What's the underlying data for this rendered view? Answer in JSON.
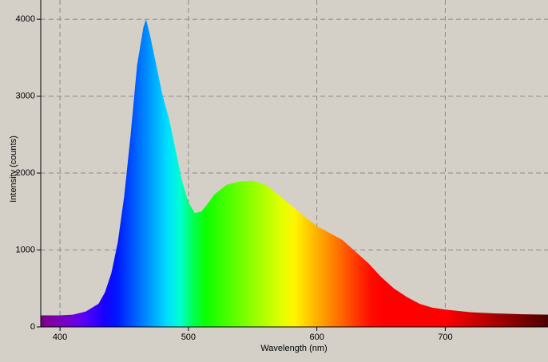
{
  "chart_data": {
    "type": "area",
    "xlabel": "Wavelength (nm)",
    "ylabel": "Intensity (counts)",
    "x": [
      385,
      400,
      410,
      420,
      430,
      435,
      440,
      445,
      450,
      455,
      460,
      465,
      467,
      470,
      475,
      480,
      485,
      490,
      495,
      500,
      505,
      510,
      515,
      520,
      530,
      540,
      550,
      560,
      570,
      580,
      590,
      600,
      610,
      620,
      630,
      640,
      650,
      660,
      670,
      680,
      690,
      700,
      720,
      740,
      760,
      780
    ],
    "values": [
      150,
      150,
      160,
      200,
      300,
      450,
      700,
      1100,
      1700,
      2500,
      3400,
      3900,
      4000,
      3800,
      3400,
      3000,
      2700,
      2300,
      1900,
      1620,
      1480,
      1500,
      1600,
      1720,
      1850,
      1890,
      1900,
      1850,
      1720,
      1580,
      1440,
      1310,
      1220,
      1130,
      980,
      830,
      650,
      500,
      390,
      300,
      250,
      225,
      190,
      175,
      165,
      160
    ],
    "xlim": [
      385,
      780
    ],
    "ylim": [
      0,
      4250
    ],
    "xticks": [
      400,
      500,
      600,
      700
    ],
    "yticks": [
      0,
      1000,
      2000,
      3000,
      4000
    ],
    "grid": true
  }
}
